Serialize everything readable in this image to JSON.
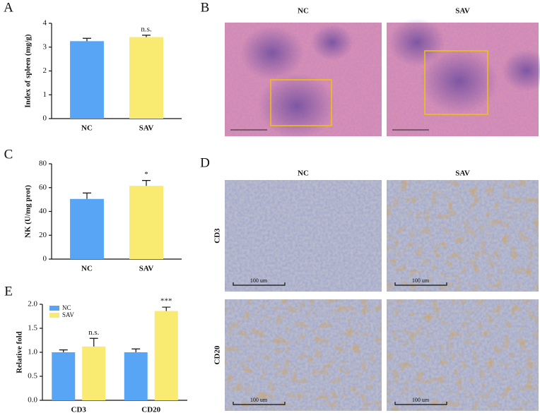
{
  "panel_letters": [
    "A",
    "B",
    "C",
    "D",
    "E"
  ],
  "histology": {
    "columns": [
      "NC",
      "SAV"
    ]
  },
  "ihc": {
    "columns": [
      "NC",
      "SAV"
    ],
    "rows": [
      "CD3",
      "CD20"
    ],
    "scale_label": "100 um"
  },
  "chart_data": [
    {
      "type": "bar",
      "ylabel": "Index of spleen (mg/g)",
      "categories": [
        "NC",
        "SAV"
      ],
      "values": [
        3.25,
        3.42
      ],
      "errors": [
        0.12,
        0.08
      ],
      "colors": [
        "#59a5f5",
        "#f9ea72"
      ],
      "annotations": [
        null,
        "n.s."
      ],
      "ylim": [
        0,
        4
      ],
      "yticks": [
        0,
        1,
        2,
        3,
        4
      ]
    },
    {
      "type": "bar",
      "ylabel": "NK (U/mg prot)",
      "categories": [
        "NC",
        "SAV"
      ],
      "values": [
        50.5,
        61.5
      ],
      "errors": [
        5,
        4.5
      ],
      "colors": [
        "#59a5f5",
        "#f9ea72"
      ],
      "annotations": [
        null,
        "*"
      ],
      "ylim": [
        0,
        80
      ],
      "yticks": [
        0,
        20,
        40,
        60,
        80
      ]
    },
    {
      "type": "grouped_bar",
      "ylabel": "Relative fold",
      "categories": [
        "CD3",
        "CD20"
      ],
      "series": [
        {
          "name": "NC",
          "color": "#59a5f5",
          "values": [
            1.0,
            1.0
          ],
          "errors": [
            0.05,
            0.07
          ],
          "annotations": [
            null,
            null
          ]
        },
        {
          "name": "SAV",
          "color": "#f9ea72",
          "values": [
            1.12,
            1.86
          ],
          "errors": [
            0.17,
            0.08
          ],
          "annotations": [
            "n.s.",
            "***"
          ]
        }
      ],
      "legend": "upper left",
      "ylim": [
        0,
        2
      ],
      "yticks": [
        {
          "value": 0,
          "label": "0.0"
        },
        0.5,
        {
          "value": 1,
          "label": "1.0"
        },
        1.5,
        {
          "value": 2,
          "label": "2.0"
        }
      ]
    }
  ]
}
